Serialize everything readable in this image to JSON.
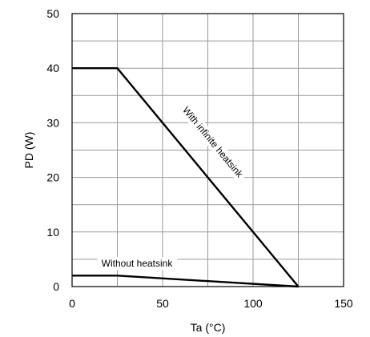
{
  "chart_data": {
    "type": "line",
    "xlabel": "Ta (°C)",
    "ylabel": "PD (W)",
    "xlim": [
      0,
      150
    ],
    "ylim": [
      0,
      50
    ],
    "x_ticks": [
      0,
      50,
      100,
      150
    ],
    "y_ticks": [
      0,
      10,
      20,
      30,
      40,
      50
    ],
    "x_minor_step": 25,
    "y_minor_step": 5,
    "grid": true,
    "series": [
      {
        "name": "With infinite heatsink",
        "x": [
          0,
          25,
          125
        ],
        "y": [
          40,
          40,
          0
        ]
      },
      {
        "name": "Without heatsink",
        "x": [
          0,
          25,
          125
        ],
        "y": [
          2,
          2,
          0
        ]
      }
    ],
    "annotations": [
      {
        "text": "With infinite heatsink",
        "series": 0
      },
      {
        "text": "Without heatsink",
        "series": 1
      }
    ]
  }
}
